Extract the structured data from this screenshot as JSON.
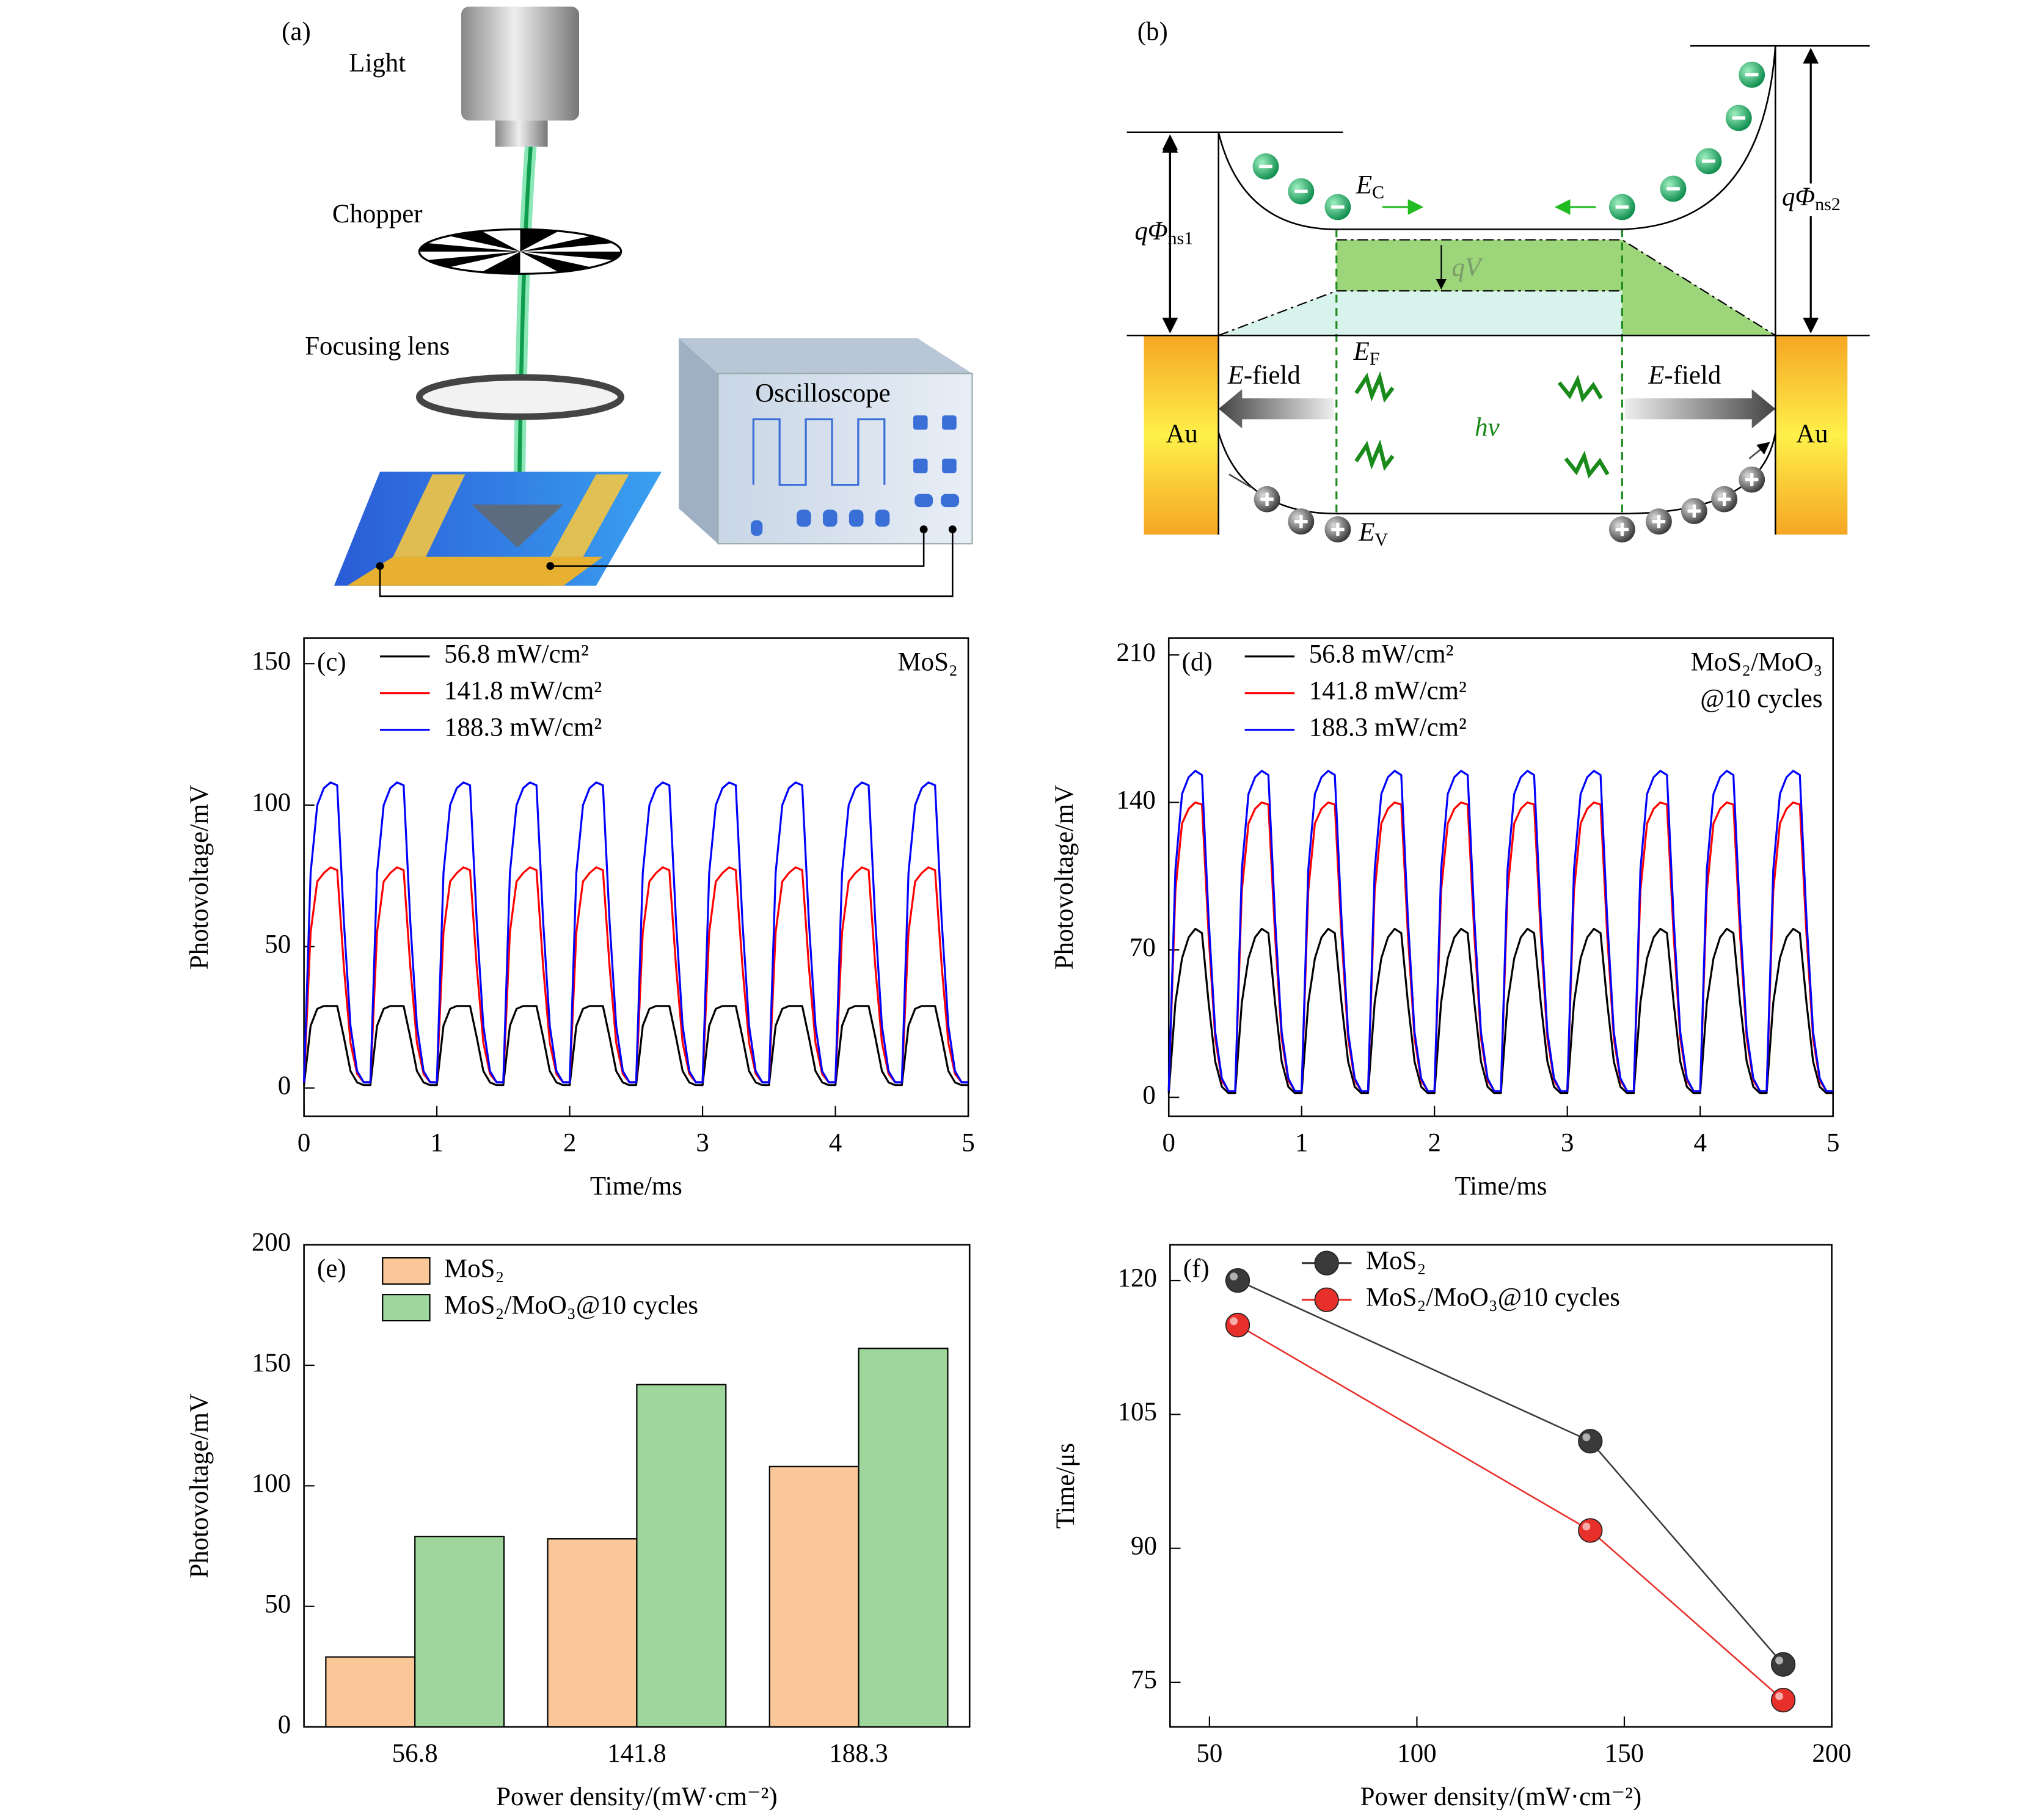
{
  "diagrams": {
    "panel_a": {
      "label": "(a)",
      "light": "Light",
      "chopper": "Chopper",
      "lens": "Focusing lens",
      "oscilloscope": "Oscilloscope"
    },
    "panel_b": {
      "label": "(b)",
      "phi1": {
        "main": "qΦ",
        "sub": "ns1"
      },
      "phi2": {
        "main": "qΦ",
        "sub": "ns2"
      },
      "ec": {
        "main": "E",
        "sub": "C"
      },
      "ef": {
        "main": "E",
        "sub": "F"
      },
      "ev": {
        "main": "E",
        "sub": "V"
      },
      "qv": "qV",
      "efield_left": {
        "main": "E",
        "rest": "-field"
      },
      "efield_right": {
        "main": "E",
        "rest": "-field"
      },
      "au_left": "Au",
      "au_right": "Au",
      "hv": "hν"
    }
  },
  "chart_data": [
    {
      "type": "line",
      "panel": "(c)",
      "annotation": [
        "MoS₂"
      ],
      "xlabel": "Time/ms",
      "ylabel": "Photovoltage/mV",
      "legend": "upper left",
      "xlim": [
        0,
        5
      ],
      "xticks": [
        0,
        1,
        2,
        3,
        4,
        5
      ],
      "ylim": [
        -10,
        159
      ],
      "yticks": [
        0,
        50,
        100,
        150
      ],
      "x": [
        0,
        0.05,
        0.1,
        0.15,
        0.2,
        0.25,
        0.3,
        0.35,
        0.4,
        0.45,
        0.5,
        0.55,
        0.6,
        0.65,
        0.7,
        0.75,
        0.8,
        0.85,
        0.9,
        0.95,
        1,
        1.05,
        1.1,
        1.15,
        1.2,
        1.25,
        1.3,
        1.35,
        1.4,
        1.45,
        1.5,
        1.55,
        1.6,
        1.65,
        1.7,
        1.75,
        1.8,
        1.85,
        1.9,
        1.95,
        2,
        2.05,
        2.1,
        2.15,
        2.2,
        2.25,
        2.3,
        2.35,
        2.4,
        2.45,
        2.5,
        2.55,
        2.6,
        2.65,
        2.7,
        2.75,
        2.8,
        2.85,
        2.9,
        2.95,
        3,
        3.05,
        3.1,
        3.15,
        3.2,
        3.25,
        3.3,
        3.35,
        3.4,
        3.45,
        3.5,
        3.55,
        3.6,
        3.65,
        3.7,
        3.75,
        3.8,
        3.85,
        3.9,
        3.95,
        4,
        4.05,
        4.1,
        4.15,
        4.2,
        4.25,
        4.3,
        4.35,
        4.4,
        4.45,
        4.5,
        4.55,
        4.6,
        4.65,
        4.7,
        4.75,
        4.8,
        4.85,
        4.9,
        4.95,
        5
      ],
      "series": [
        {
          "name": "56.8 mW/cm²",
          "color": "#000000",
          "values": [
            1,
            22,
            28,
            29,
            29,
            29,
            18,
            6,
            2,
            1,
            1,
            22,
            28,
            29,
            29,
            29,
            18,
            6,
            2,
            1,
            1,
            22,
            28,
            29,
            29,
            29,
            18,
            6,
            2,
            1,
            1,
            22,
            28,
            29,
            29,
            29,
            18,
            6,
            2,
            1,
            1,
            22,
            28,
            29,
            29,
            29,
            18,
            6,
            2,
            1,
            1,
            22,
            28,
            29,
            29,
            29,
            18,
            6,
            2,
            1,
            1,
            22,
            28,
            29,
            29,
            29,
            18,
            6,
            2,
            1,
            1,
            22,
            28,
            29,
            29,
            29,
            18,
            6,
            2,
            1,
            1,
            22,
            28,
            29,
            29,
            29,
            18,
            6,
            2,
            1,
            1,
            22,
            28,
            29,
            29,
            29,
            18,
            6,
            2,
            1,
            1
          ]
        },
        {
          "name": "141.8 mW/cm²",
          "color": "#ff0000",
          "values": [
            2,
            55,
            73,
            76,
            78,
            77,
            43,
            16,
            5,
            2,
            2,
            55,
            73,
            76,
            78,
            77,
            43,
            16,
            5,
            2,
            2,
            55,
            73,
            76,
            78,
            77,
            43,
            16,
            5,
            2,
            2,
            55,
            73,
            76,
            78,
            77,
            43,
            16,
            5,
            2,
            2,
            55,
            73,
            76,
            78,
            77,
            43,
            16,
            5,
            2,
            2,
            55,
            73,
            76,
            78,
            77,
            43,
            16,
            5,
            2,
            2,
            55,
            73,
            76,
            78,
            77,
            43,
            16,
            5,
            2,
            2,
            55,
            73,
            76,
            78,
            77,
            43,
            16,
            5,
            2,
            2,
            55,
            73,
            76,
            78,
            77,
            43,
            16,
            5,
            2,
            2,
            55,
            73,
            76,
            78,
            77,
            43,
            16,
            5,
            2,
            2
          ]
        },
        {
          "name": "188.3 mW/cm²",
          "color": "#0000ff",
          "values": [
            2,
            76,
            100,
            106,
            108,
            107,
            59,
            22,
            6,
            2,
            2,
            76,
            100,
            106,
            108,
            107,
            59,
            22,
            6,
            2,
            2,
            76,
            100,
            106,
            108,
            107,
            59,
            22,
            6,
            2,
            2,
            76,
            100,
            106,
            108,
            107,
            59,
            22,
            6,
            2,
            2,
            76,
            100,
            106,
            108,
            107,
            59,
            22,
            6,
            2,
            2,
            76,
            100,
            106,
            108,
            107,
            59,
            22,
            6,
            2,
            2,
            76,
            100,
            106,
            108,
            107,
            59,
            22,
            6,
            2,
            2,
            76,
            100,
            106,
            108,
            107,
            59,
            22,
            6,
            2,
            2,
            76,
            100,
            106,
            108,
            107,
            59,
            22,
            6,
            2,
            2,
            76,
            100,
            106,
            108,
            107,
            59,
            22,
            6,
            2,
            2
          ]
        }
      ]
    },
    {
      "type": "line",
      "panel": "(d)",
      "annotation": [
        "MoS₂/MoO₃",
        "@10 cycles"
      ],
      "xlabel": "Time/ms",
      "ylabel": "Photovoltage/mV",
      "legend": "upper left",
      "xlim": [
        0,
        5
      ],
      "xticks": [
        0,
        1,
        2,
        3,
        4,
        5
      ],
      "ylim": [
        -9,
        218
      ],
      "yticks": [
        0,
        70,
        140,
        210
      ],
      "x": [
        0,
        0.05,
        0.1,
        0.15,
        0.2,
        0.25,
        0.3,
        0.35,
        0.4,
        0.45,
        0.5,
        0.55,
        0.6,
        0.65,
        0.7,
        0.75,
        0.8,
        0.85,
        0.9,
        0.95,
        1,
        1.05,
        1.1,
        1.15,
        1.2,
        1.25,
        1.3,
        1.35,
        1.4,
        1.45,
        1.5,
        1.55,
        1.6,
        1.65,
        1.7,
        1.75,
        1.8,
        1.85,
        1.9,
        1.95,
        2,
        2.05,
        2.1,
        2.15,
        2.2,
        2.25,
        2.3,
        2.35,
        2.4,
        2.45,
        2.5,
        2.55,
        2.6,
        2.65,
        2.7,
        2.75,
        2.8,
        2.85,
        2.9,
        2.95,
        3,
        3.05,
        3.1,
        3.15,
        3.2,
        3.25,
        3.3,
        3.35,
        3.4,
        3.45,
        3.5,
        3.55,
        3.6,
        3.65,
        3.7,
        3.75,
        3.8,
        3.85,
        3.9,
        3.95,
        4,
        4.05,
        4.1,
        4.15,
        4.2,
        4.25,
        4.3,
        4.35,
        4.4,
        4.45,
        4.5,
        4.55,
        4.6,
        4.65,
        4.7,
        4.75,
        4.8,
        4.85,
        4.9,
        4.95,
        5
      ],
      "series": [
        {
          "name": "56.8 mW/cm²",
          "color": "#000000",
          "values": [
            2,
            45,
            66,
            76,
            80,
            78,
            45,
            17,
            5,
            2,
            2,
            45,
            66,
            76,
            80,
            78,
            45,
            17,
            5,
            2,
            2,
            45,
            66,
            76,
            80,
            78,
            45,
            17,
            5,
            2,
            2,
            45,
            66,
            76,
            80,
            78,
            45,
            17,
            5,
            2,
            2,
            45,
            66,
            76,
            80,
            78,
            45,
            17,
            5,
            2,
            2,
            45,
            66,
            76,
            80,
            78,
            45,
            17,
            5,
            2,
            2,
            45,
            66,
            76,
            80,
            78,
            45,
            17,
            5,
            2,
            2,
            45,
            66,
            76,
            80,
            78,
            45,
            17,
            5,
            2,
            2,
            45,
            66,
            76,
            80,
            78,
            45,
            17,
            5,
            2,
            2,
            45,
            66,
            76,
            80,
            78,
            45,
            17,
            5,
            2,
            2
          ]
        },
        {
          "name": "141.8 mW/cm²",
          "color": "#ff0000",
          "values": [
            3,
            98,
            130,
            137,
            140,
            139,
            77,
            28,
            8,
            3,
            3,
            98,
            130,
            137,
            140,
            139,
            77,
            28,
            8,
            3,
            3,
            98,
            130,
            137,
            140,
            139,
            77,
            28,
            8,
            3,
            3,
            98,
            130,
            137,
            140,
            139,
            77,
            28,
            8,
            3,
            3,
            98,
            130,
            137,
            140,
            139,
            77,
            28,
            8,
            3,
            3,
            98,
            130,
            137,
            140,
            139,
            77,
            28,
            8,
            3,
            3,
            98,
            130,
            137,
            140,
            139,
            77,
            28,
            8,
            3,
            3,
            98,
            130,
            137,
            140,
            139,
            77,
            28,
            8,
            3,
            3,
            98,
            130,
            137,
            140,
            139,
            77,
            28,
            8,
            3,
            3,
            98,
            130,
            137,
            140,
            139,
            77,
            28,
            8,
            3,
            3
          ]
        },
        {
          "name": "188.3 mW/cm²",
          "color": "#0000ff",
          "values": [
            3,
            108,
            144,
            152,
            155,
            153,
            85,
            31,
            9,
            3,
            3,
            108,
            144,
            152,
            155,
            153,
            85,
            31,
            9,
            3,
            3,
            108,
            144,
            152,
            155,
            153,
            85,
            31,
            9,
            3,
            3,
            108,
            144,
            152,
            155,
            153,
            85,
            31,
            9,
            3,
            3,
            108,
            144,
            152,
            155,
            153,
            85,
            31,
            9,
            3,
            3,
            108,
            144,
            152,
            155,
            153,
            85,
            31,
            9,
            3,
            3,
            108,
            144,
            152,
            155,
            153,
            85,
            31,
            9,
            3,
            3,
            108,
            144,
            152,
            155,
            153,
            85,
            31,
            9,
            3,
            3,
            108,
            144,
            152,
            155,
            153,
            85,
            31,
            9,
            3,
            3,
            108,
            144,
            152,
            155,
            153,
            85,
            31,
            9,
            3,
            3
          ]
        }
      ]
    },
    {
      "type": "bar",
      "panel": "(e)",
      "xlabel": "Power density/(mW·cm⁻²)",
      "ylabel": "Photovoltage/mV",
      "legend": "upper left",
      "categories": [
        "56.8",
        "141.8",
        "188.3"
      ],
      "ylim": [
        0,
        200
      ],
      "yticks": [
        0,
        50,
        100,
        150,
        200
      ],
      "series": [
        {
          "name": "MoS₂",
          "color": "#fac898",
          "values": [
            29,
            78,
            108
          ]
        },
        {
          "name": "MoS₂/MoO₃@10 cycles",
          "color": "#9ed69b",
          "values": [
            79,
            142,
            157
          ]
        }
      ]
    },
    {
      "type": "line",
      "markers": true,
      "panel": "(f)",
      "xlabel": "Power density/(mW·cm⁻²)",
      "ylabel": "Time/μs",
      "legend": "upper center",
      "x": [
        56.8,
        141.8,
        188.3
      ],
      "xlim": [
        40.5,
        200
      ],
      "xticks": [
        50,
        100,
        150,
        200
      ],
      "ylim": [
        70,
        124
      ],
      "yticks": [
        75,
        90,
        105,
        120
      ],
      "series": [
        {
          "name": "MoS₂",
          "color": "#3a3a3a",
          "values": [
            120,
            102,
            77
          ]
        },
        {
          "name": "MoS₂/MoO₃@10 cycles",
          "color": "#e8302a",
          "values": [
            115,
            92,
            73
          ]
        }
      ]
    }
  ]
}
